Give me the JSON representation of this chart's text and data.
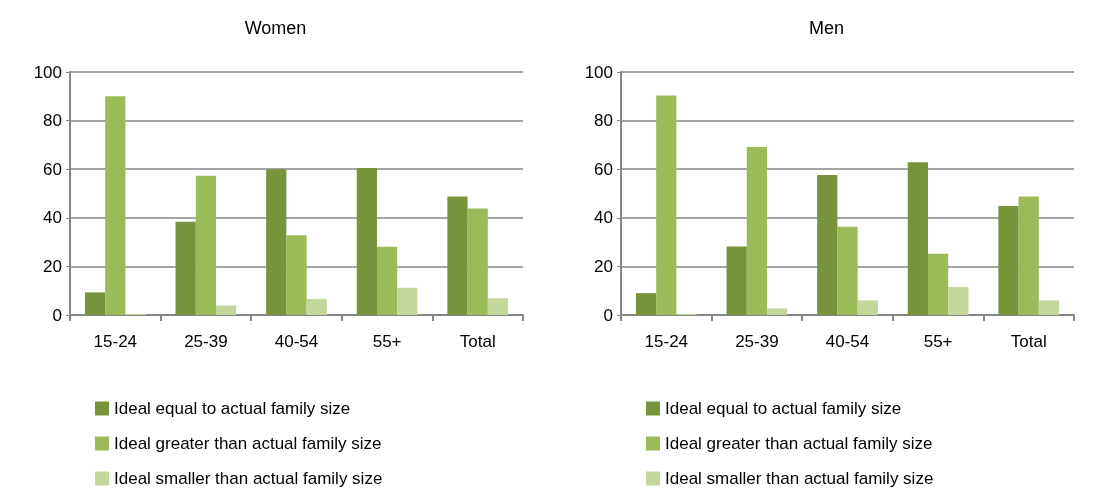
{
  "chart_data": [
    {
      "type": "bar",
      "title": "Women",
      "categories": [
        "15-24",
        "25-39",
        "40-54",
        "55+",
        "Total"
      ],
      "series": [
        {
          "name": "Ideal equal to actual family size",
          "color": "#77933c",
          "values": [
            9.3,
            38.4,
            60,
            60.5,
            48.8
          ]
        },
        {
          "name": "Ideal greater than actual family size",
          "color": "#9bbb59",
          "values": [
            90,
            57.3,
            32.8,
            28.1,
            43.8
          ]
        },
        {
          "name": "Ideal smaller than actual family size",
          "color": "#c3d69b",
          "values": [
            0.5,
            3.9,
            6.6,
            11.2,
            6.9
          ]
        }
      ],
      "ylim": [
        0,
        100
      ],
      "yticks": [
        0,
        20,
        40,
        60,
        80,
        100
      ],
      "grid": "y",
      "legend": "bottom"
    },
    {
      "type": "bar",
      "title": "Men",
      "categories": [
        "15-24",
        "25-39",
        "40-54",
        "55+",
        "Total"
      ],
      "series": [
        {
          "name": "Ideal equal to actual family size",
          "color": "#77933c",
          "values": [
            9,
            28.2,
            57.6,
            62.9,
            44.9
          ]
        },
        {
          "name": "Ideal greater than actual family size",
          "color": "#9bbb59",
          "values": [
            90.3,
            69.1,
            36.3,
            25.2,
            48.8
          ]
        },
        {
          "name": "Ideal smaller than actual family size",
          "color": "#c3d69b",
          "values": [
            0.5,
            2.7,
            6,
            11.5,
            6
          ]
        }
      ],
      "ylim": [
        0,
        100
      ],
      "yticks": [
        0,
        20,
        40,
        60,
        80,
        100
      ],
      "grid": "y",
      "legend": "bottom"
    }
  ]
}
